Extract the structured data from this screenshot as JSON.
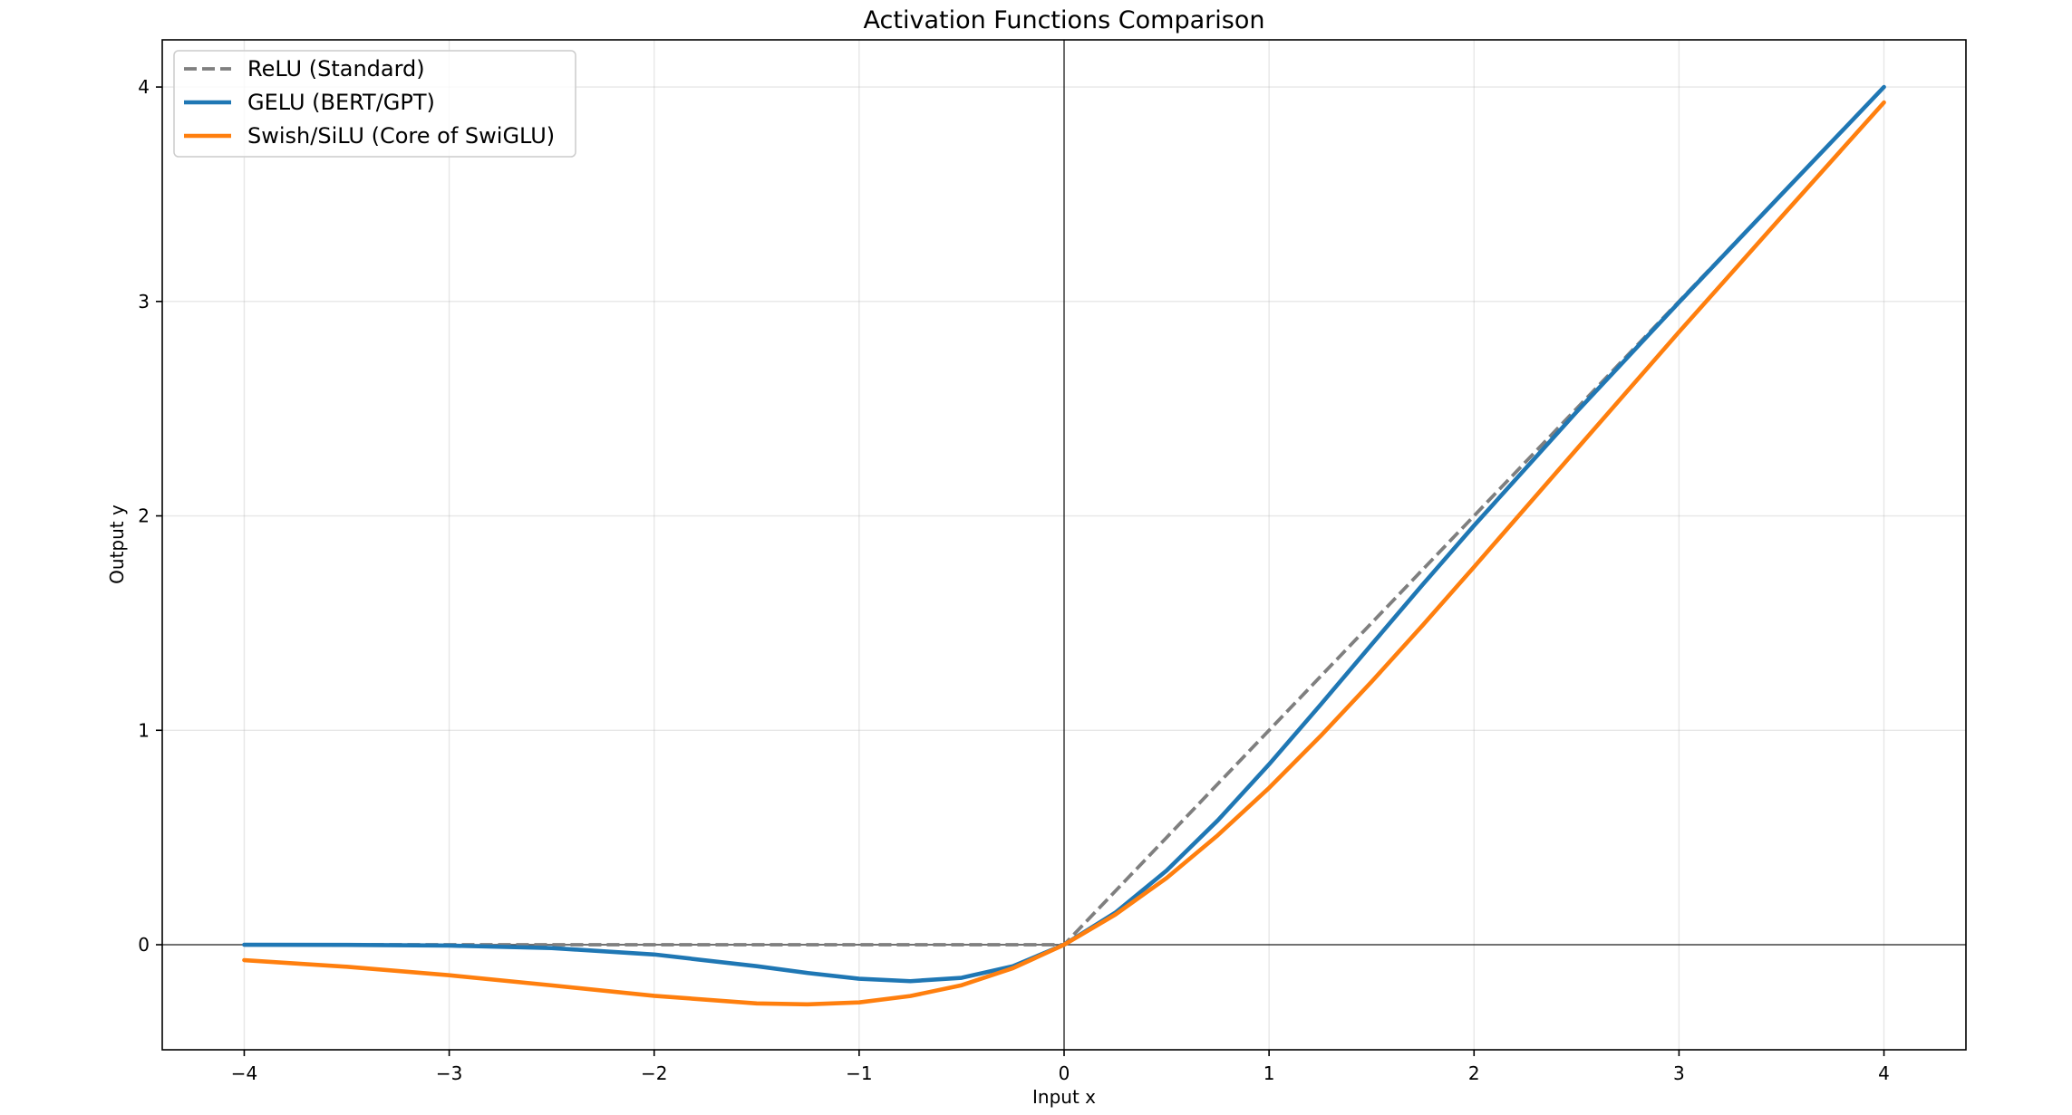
{
  "chart_data": {
    "type": "line",
    "title": "Activation Functions Comparison",
    "xlabel": "Input x",
    "ylabel": "Output y",
    "xlim": [
      -4.4,
      4.4
    ],
    "ylim": [
      -0.49,
      4.22
    ],
    "xticks": [
      -4,
      -3,
      -2,
      -1,
      0,
      1,
      2,
      3,
      4
    ],
    "yticks": [
      0,
      1,
      2,
      3,
      4
    ],
    "xtick_labels": [
      "−4",
      "−3",
      "−2",
      "−1",
      "0",
      "1",
      "2",
      "3",
      "4"
    ],
    "ytick_labels": [
      "0",
      "1",
      "2",
      "3",
      "4"
    ],
    "grid": true,
    "reference_lines": {
      "x0": true,
      "y0": true
    },
    "legend_position": "upper-left",
    "x": [
      -4.0,
      -3.5,
      -3.0,
      -2.5,
      -2.0,
      -1.5,
      -1.25,
      -1.0,
      -0.75,
      -0.5,
      -0.25,
      0.0,
      0.25,
      0.5,
      0.75,
      1.0,
      1.25,
      1.5,
      1.75,
      2.0,
      2.5,
      3.0,
      3.5,
      4.0
    ],
    "series": [
      {
        "name": "ReLU (Standard)",
        "color": "#7f7f7f",
        "style": "dashed",
        "values": [
          0.0,
          0.0,
          0.0,
          0.0,
          0.0,
          0.0,
          0.0,
          0.0,
          0.0,
          0.0,
          0.0,
          0.0,
          0.25,
          0.5,
          0.75,
          1.0,
          1.25,
          1.5,
          1.75,
          2.0,
          2.5,
          3.0,
          3.5,
          4.0
        ]
      },
      {
        "name": "GELU (BERT/GPT)",
        "color": "#1f77b4",
        "style": "solid",
        "values": [
          -0.0001,
          -0.0008,
          -0.004,
          -0.0155,
          -0.0455,
          -0.1002,
          -0.132,
          -0.1588,
          -0.17,
          -0.1543,
          -0.1004,
          0.0,
          0.1496,
          0.3457,
          0.58,
          0.8412,
          1.118,
          1.3998,
          1.68,
          1.9545,
          2.4845,
          2.996,
          3.4992,
          3.9999
        ]
      },
      {
        "name": "Swish/SiLU (Core of SwiGLU)",
        "color": "#ff7f0e",
        "style": "solid",
        "values": [
          -0.0719,
          -0.1027,
          -0.1423,
          -0.1896,
          -0.2384,
          -0.2736,
          -0.278,
          -0.2689,
          -0.2393,
          -0.1888,
          -0.1097,
          0.0,
          0.1403,
          0.3112,
          0.5107,
          0.7311,
          0.972,
          1.2264,
          1.4903,
          1.7616,
          2.3104,
          2.8577,
          3.3944,
          3.9281
        ]
      }
    ]
  }
}
